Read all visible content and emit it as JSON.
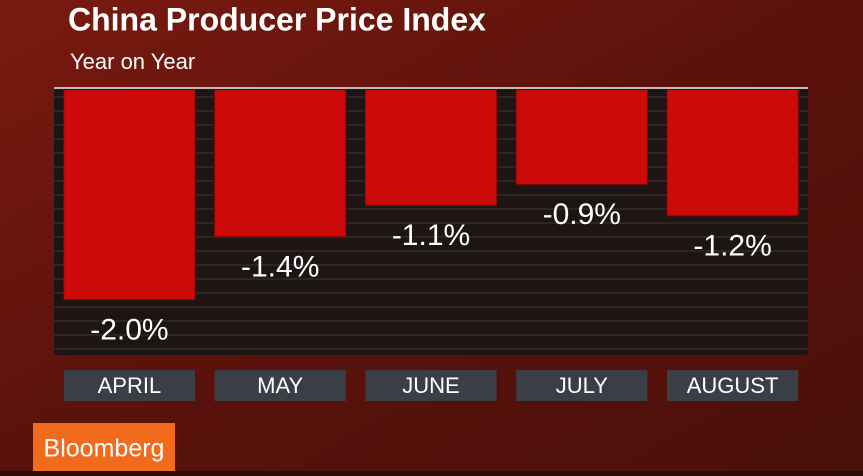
{
  "chart_data": {
    "type": "bar",
    "title": "China Producer Price Index",
    "subtitle": "Year on Year",
    "categories": [
      "APRIL",
      "MAY",
      "JUNE",
      "JULY",
      "AUGUST"
    ],
    "values": [
      -2.0,
      -1.4,
      -1.1,
      -0.9,
      -1.2
    ],
    "value_labels": [
      "-2.0%",
      "-1.4%",
      "-1.1%",
      "-0.9%",
      "-1.2%"
    ],
    "color": "#cc0a0a",
    "ylim": [
      -2.5,
      0
    ],
    "source": "Bloomberg"
  }
}
